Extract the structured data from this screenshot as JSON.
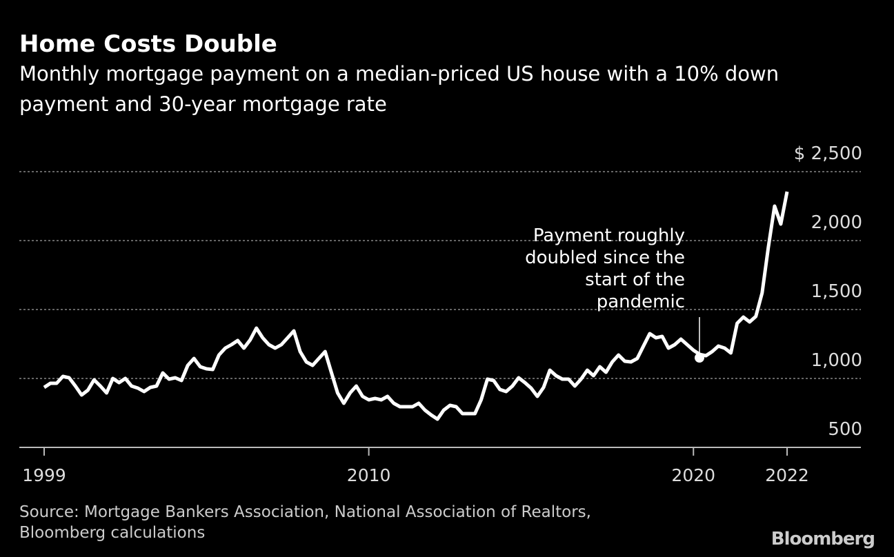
{
  "chart_data": {
    "type": "line",
    "title": "Home Costs Double",
    "subtitle": [
      "Monthly mortgage payment on a median-priced US house with a 10% down",
      "payment and 30-year mortgage rate"
    ],
    "annotation": [
      "Payment roughly",
      "doubled since the",
      "start of the",
      "pandemic"
    ],
    "source": [
      "Source: Mortgage Bankers Association, National Association of Realtors,",
      "Bloomberg calculations"
    ],
    "brand": "Bloomberg",
    "categories": [
      "1999",
      null,
      null,
      null,
      null,
      null,
      null,
      null,
      null,
      null,
      null,
      null,
      null,
      null,
      null,
      null,
      null,
      null,
      null,
      null,
      null,
      null,
      null,
      null,
      null,
      null,
      null,
      null,
      null,
      null,
      null,
      null,
      null,
      null,
      null,
      null,
      null,
      null,
      null,
      null,
      null,
      null,
      null,
      null,
      null,
      null,
      null,
      null,
      null,
      null,
      null,
      null,
      "2010",
      null,
      null,
      null,
      null,
      null,
      null,
      null,
      null,
      null,
      null,
      null,
      null,
      null,
      null,
      null,
      null,
      null,
      null,
      null,
      null,
      null,
      null,
      null,
      null,
      null,
      null,
      null,
      null,
      null,
      null,
      null,
      null,
      null,
      null,
      null,
      null,
      null,
      null,
      null,
      null,
      null,
      null,
      null,
      null,
      null,
      null,
      null,
      null,
      null,
      null,
      null,
      "2020",
      null,
      null,
      null,
      null,
      null,
      null,
      null,
      null,
      null,
      null,
      null,
      null,
      null,
      null,
      "2022"
    ],
    "series": [
      {
        "name": "Monthly mortgage payment",
        "color": "#ffffff",
        "values": [
          935,
          965,
          965,
          1015,
          1005,
          945,
          880,
          915,
          990,
          945,
          895,
          1000,
          970,
          1000,
          945,
          930,
          905,
          935,
          945,
          1040,
          995,
          1005,
          985,
          1095,
          1145,
          1085,
          1070,
          1065,
          1170,
          1220,
          1245,
          1275,
          1220,
          1280,
          1365,
          1295,
          1245,
          1220,
          1245,
          1295,
          1345,
          1195,
          1120,
          1095,
          1145,
          1195,
          1045,
          895,
          820,
          895,
          945,
          870,
          845,
          855,
          845,
          870,
          820,
          795,
          795,
          795,
          820,
          770,
          735,
          705,
          770,
          805,
          795,
          745,
          745,
          745,
          845,
          995,
          985,
          920,
          905,
          945,
          1005,
          970,
          930,
          870,
          935,
          1060,
          1020,
          995,
          995,
          945,
          995,
          1060,
          1020,
          1085,
          1045,
          1120,
          1170,
          1125,
          1120,
          1145,
          1235,
          1325,
          1295,
          1305,
          1220,
          1245,
          1285,
          1245,
          1205,
          1175,
          1165,
          1195,
          1235,
          1220,
          1185,
          1400,
          1445,
          1410,
          1450,
          1620,
          1950,
          2250,
          2120,
          2355
        ]
      }
    ],
    "ylim": [
      500,
      2500
    ],
    "yticks": [
      {
        "value": 500,
        "label": "500"
      },
      {
        "value": 1000,
        "label": "1,000"
      },
      {
        "value": 1500,
        "label": "1,500"
      },
      {
        "value": 2000,
        "label": "2,000"
      },
      {
        "value": 2500,
        "label": "$ 2,500"
      }
    ],
    "grid": true
  }
}
